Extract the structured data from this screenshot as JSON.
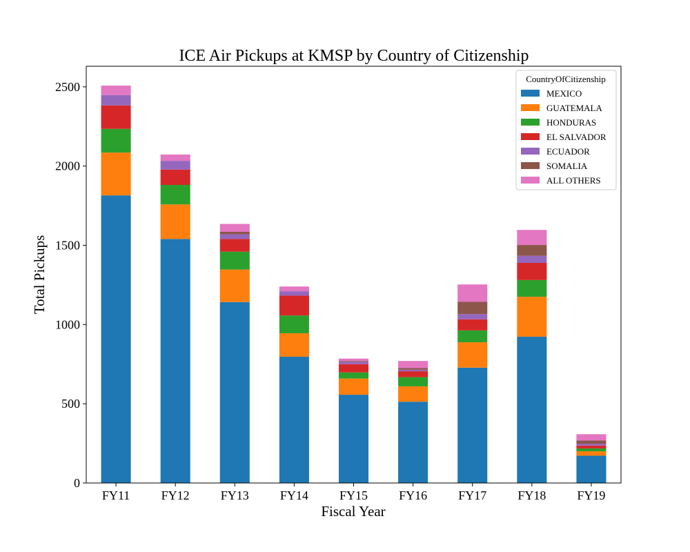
{
  "chart_data": {
    "type": "bar",
    "stacked": true,
    "title": "ICE Air Pickups at KMSP by Country of Citizenship",
    "xlabel": "Fiscal Year",
    "ylabel": "Total Pickups",
    "categories": [
      "FY11",
      "FY12",
      "FY13",
      "FY14",
      "FY15",
      "FY16",
      "FY17",
      "FY18",
      "FY19"
    ],
    "ylim": [
      0,
      2630
    ],
    "yticks": [
      0,
      500,
      1000,
      1500,
      2000,
      2500
    ],
    "grid": false,
    "legend": {
      "title": "CountryOfCitizenship",
      "placement": "top-right"
    },
    "series": [
      {
        "name": "MEXICO",
        "color": "#1f77b4",
        "values": [
          1815,
          1540,
          1142,
          797,
          557,
          513,
          728,
          923,
          172
        ]
      },
      {
        "name": "GUATEMALA",
        "color": "#ff7f0e",
        "values": [
          270,
          218,
          205,
          148,
          102,
          97,
          160,
          252,
          28
        ]
      },
      {
        "name": "HONDURAS",
        "color": "#2ca02c",
        "values": [
          150,
          123,
          113,
          112,
          39,
          58,
          75,
          106,
          18
        ]
      },
      {
        "name": "EL SALVADOR",
        "color": "#d62728",
        "values": [
          148,
          97,
          80,
          125,
          52,
          37,
          70,
          108,
          18
        ]
      },
      {
        "name": "ECUADOR",
        "color": "#9467bd",
        "values": [
          65,
          55,
          30,
          28,
          15,
          10,
          33,
          45,
          12
        ]
      },
      {
        "name": "SOMALIA",
        "color": "#8c564b",
        "values": [
          0,
          0,
          15,
          0,
          5,
          10,
          77,
          68,
          20
        ]
      },
      {
        "name": "ALL OTHERS",
        "color": "#e377c2",
        "values": [
          60,
          40,
          50,
          30,
          15,
          45,
          110,
          95,
          40
        ]
      }
    ]
  }
}
